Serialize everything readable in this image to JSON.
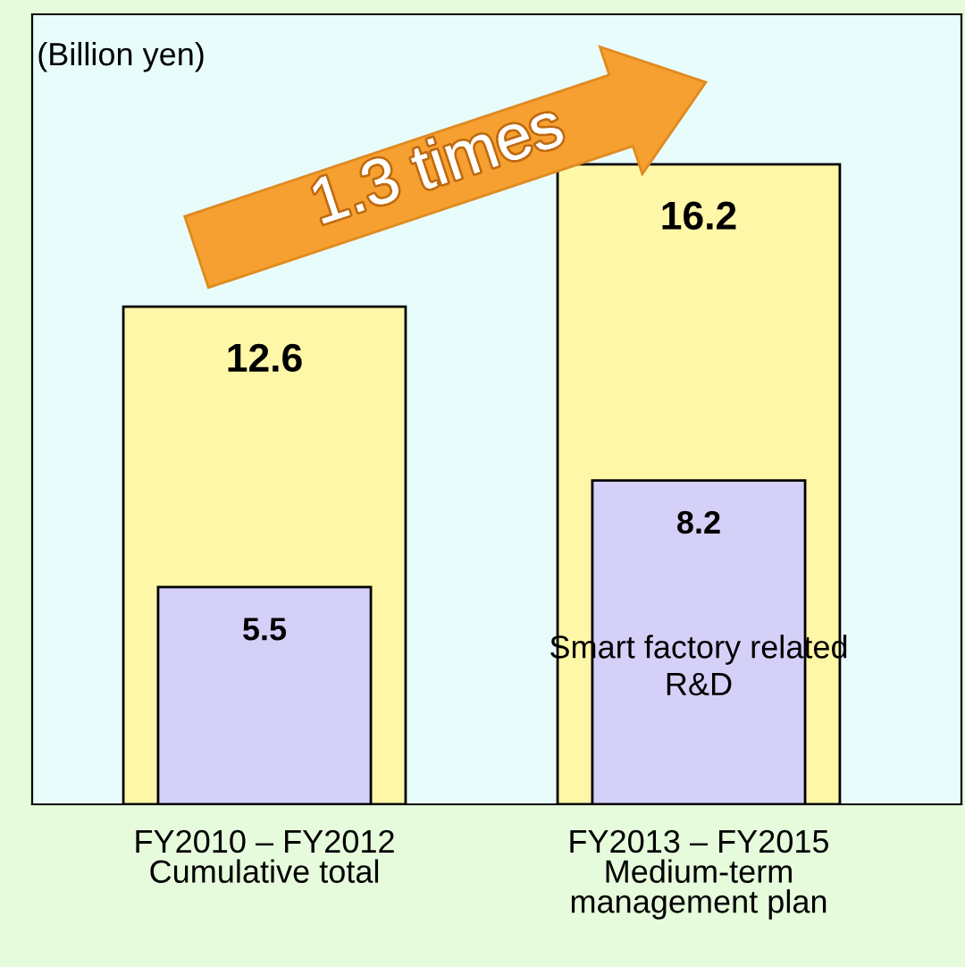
{
  "chart_data": {
    "type": "bar",
    "categories": [
      "FY2010 – FY2012\nCumulative total",
      "FY2013 – FY2015\nMedium-term\nmanagement plan"
    ],
    "series": [
      {
        "color": "#fff7a8",
        "values": [
          12.6,
          16.2
        ]
      },
      {
        "name": "Smart factory related\nR&D",
        "color": "#d4d0f8",
        "values": [
          5.5,
          8.2
        ]
      }
    ],
    "ylim": [
      0,
      20
    ],
    "data_labels": true,
    "annotations": [
      "(Billion yen)",
      "1.3 times"
    ]
  }
}
